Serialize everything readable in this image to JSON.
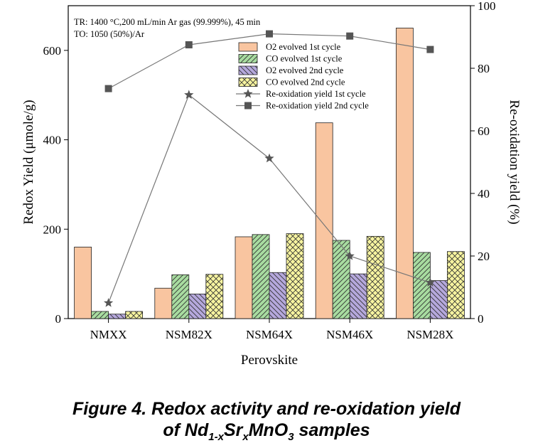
{
  "chart_data": {
    "type": "bar",
    "categories": [
      "NMXX",
      "NSM82X",
      "NSM64X",
      "NSM46X",
      "NSM28X"
    ],
    "xlabel": "Perovskite",
    "ylabel": "Redox Yield (μmole/g)",
    "y2label": "Re-oxidation yield (%)",
    "ylim": [
      0,
      700
    ],
    "y2lim": [
      0,
      100
    ],
    "yticks": [
      0,
      200,
      400,
      600
    ],
    "y2ticks": [
      0,
      20,
      40,
      60,
      80,
      100
    ],
    "annotations": [
      "TR: 1400 °C,200  mL/min  Ar gas (99.999%), 45 min",
      "TO: 1050  (50%)/Ar"
    ],
    "legend_position": "upper-center",
    "series": [
      {
        "name": "O2 evolved 1st cycle",
        "axis": "left",
        "kind": "bar",
        "color": "#f9c5a0",
        "pattern": "none",
        "values": [
          160,
          68,
          183,
          438,
          650
        ]
      },
      {
        "name": "CO evolved 1st cycle",
        "axis": "left",
        "kind": "bar",
        "color": "#a8dca0",
        "pattern": "diag-right",
        "values": [
          16,
          98,
          188,
          175,
          148
        ]
      },
      {
        "name": "O2 evolved 2nd cycle",
        "axis": "left",
        "kind": "bar",
        "color": "#b5a8dc",
        "pattern": "diag-left",
        "values": [
          10,
          55,
          103,
          100,
          85
        ]
      },
      {
        "name": "CO evolved 2nd cycle",
        "axis": "left",
        "kind": "bar",
        "color": "#f7f4a0",
        "pattern": "cross",
        "values": [
          16,
          99,
          190,
          184,
          150
        ]
      },
      {
        "name": "Re-oxidation yield 1st cycle",
        "axis": "right",
        "kind": "line",
        "marker": "star",
        "color": "#555555",
        "values": [
          5,
          71.5,
          51.2,
          20,
          11.5
        ]
      },
      {
        "name": "Re-oxidation yield 2nd cycle",
        "axis": "right",
        "kind": "line",
        "marker": "square",
        "color": "#555555",
        "values": [
          73.5,
          87.5,
          91,
          90.3,
          86
        ]
      }
    ]
  },
  "caption": {
    "line1": "Figure 4. Redox activity and re-oxidation yield",
    "prefix": "of Nd",
    "sub1": "1-x",
    "mid1": "Sr",
    "sub2": "x",
    "mid2": "MnO",
    "sub3": "3",
    "suffix": " samples"
  }
}
